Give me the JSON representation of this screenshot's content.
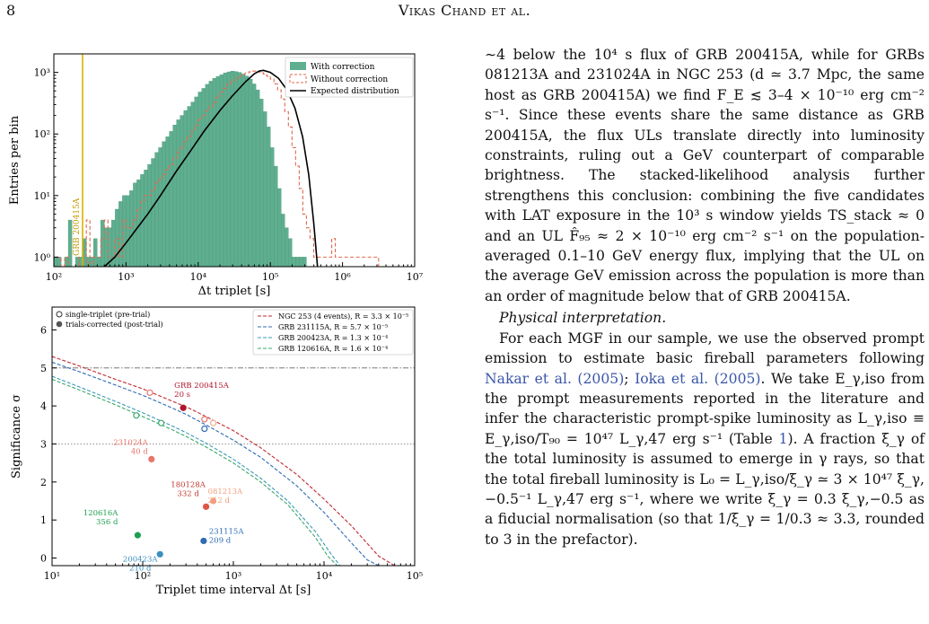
{
  "header": {
    "page_number": "8",
    "authors": "Vikas Chand et al."
  },
  "figure_top": {
    "chart_data": {
      "type": "bar",
      "xlabel": "Δt triplet [s]",
      "ylabel": "Entries per bin",
      "x_scale": "log",
      "y_scale": "log",
      "xlim": [
        100,
        10000000
      ],
      "ylim": [
        0.7,
        2000
      ],
      "x_ticks": [
        "10²",
        "10³",
        "10⁴",
        "10⁵",
        "10⁶",
        "10⁷"
      ],
      "y_ticks": [
        "10⁰",
        "10¹",
        "10²",
        "10³"
      ],
      "legend": [
        "With correction",
        "Without correction",
        "Expected distribution"
      ],
      "legend_position": "top-right",
      "annotation": {
        "label": "GRB 200415A",
        "x": 250
      },
      "log_bin_edges": [
        2.0,
        2.05,
        2.1,
        2.15,
        2.2,
        2.25,
        2.3,
        2.35,
        2.4,
        2.45,
        2.5,
        2.55,
        2.6,
        2.65,
        2.7,
        2.75,
        2.8,
        2.85,
        2.9,
        2.95,
        3.0,
        3.05,
        3.1,
        3.15,
        3.2,
        3.25,
        3.3,
        3.35,
        3.4,
        3.45,
        3.5,
        3.55,
        3.6,
        3.65,
        3.7,
        3.75,
        3.8,
        3.85,
        3.9,
        3.95,
        4.0,
        4.05,
        4.1,
        4.15,
        4.2,
        4.25,
        4.3,
        4.35,
        4.4,
        4.45,
        4.5,
        4.55,
        4.6,
        4.65,
        4.7,
        4.75,
        4.8,
        4.85,
        4.9,
        4.95,
        5.0,
        5.05,
        5.1,
        5.15,
        5.2,
        5.25,
        5.3,
        5.35,
        5.4,
        5.45,
        5.5,
        5.55,
        5.6,
        5.65,
        5.7,
        5.75,
        5.8,
        5.85,
        5.9,
        5.95,
        6.0,
        6.05,
        6.1,
        6.15,
        6.2,
        6.25,
        6.3,
        6.35,
        6.4,
        6.45,
        6.5
      ],
      "series": [
        {
          "name": "With correction",
          "values": [
            1,
            1,
            0,
            1,
            4,
            0,
            1,
            1,
            2,
            1,
            1,
            2,
            1,
            4,
            3,
            3,
            4,
            6,
            8,
            10,
            10,
            12,
            16,
            18,
            22,
            26,
            32,
            40,
            50,
            60,
            75,
            90,
            110,
            140,
            170,
            200,
            240,
            280,
            330,
            400,
            480,
            550,
            640,
            720,
            800,
            860,
            920,
            980,
            1020,
            1050,
            1030,
            1000,
            940,
            870,
            780,
            650,
            520,
            370,
            230,
            130,
            60,
            30,
            13,
            5,
            3,
            2,
            1,
            1,
            1,
            1,
            0,
            0,
            0,
            0,
            0,
            0,
            0,
            0,
            0,
            0,
            0,
            0,
            0,
            0,
            0,
            0,
            0,
            0,
            0,
            0
          ]
        },
        {
          "name": "Without correction",
          "values": [
            1,
            1,
            0,
            1,
            0,
            0,
            0,
            1,
            0,
            4,
            0,
            1,
            1,
            2,
            4,
            1,
            1,
            2,
            1,
            4,
            3,
            3,
            4,
            6,
            8,
            10,
            10,
            12,
            16,
            18,
            22,
            26,
            32,
            40,
            50,
            60,
            75,
            90,
            110,
            140,
            170,
            200,
            240,
            280,
            330,
            400,
            480,
            550,
            640,
            720,
            800,
            860,
            920,
            980,
            1020,
            1050,
            1030,
            1000,
            940,
            870,
            780,
            650,
            520,
            370,
            230,
            130,
            60,
            30,
            13,
            5,
            3,
            2,
            1,
            1,
            1,
            1,
            1,
            2,
            1,
            1,
            1,
            1,
            1,
            1,
            1,
            1,
            1,
            1,
            1,
            1
          ]
        }
      ],
      "expected_curve": {
        "name": "Expected distribution",
        "x": [
          500,
          700,
          1000,
          1500,
          2000,
          3000,
          5000,
          8000,
          12000,
          20000,
          30000,
          45000,
          60000,
          70000,
          80000,
          100000,
          130000,
          170000,
          220000,
          280000,
          340000,
          400000,
          450000
        ],
        "y": [
          0.7,
          1.0,
          1.7,
          3.2,
          5.0,
          10,
          25,
          55,
          110,
          240,
          420,
          700,
          950,
          1050,
          1080,
          1000,
          800,
          520,
          260,
          90,
          22,
          3.5,
          0.7
        ]
      }
    }
  },
  "figure_bottom": {
    "chart_data": {
      "type": "scatter",
      "xlabel": "Triplet time interval Δt [s]",
      "ylabel": "Significance σ",
      "x_scale": "log",
      "xlim": [
        10,
        100000
      ],
      "ylim": [
        -0.2,
        6.6
      ],
      "x_ticks": [
        "10¹",
        "10²",
        "10³",
        "10⁴",
        "10⁵"
      ],
      "y_ticks": [
        "0",
        "1",
        "2",
        "3",
        "4",
        "5",
        "6"
      ],
      "hlines": [
        5,
        3
      ],
      "marker_legend": [
        "single-triplet (pre-trial)",
        "trials-corrected (post-trial)"
      ],
      "curve_legend": [
        "NGC 253 (4 events), R = 3.3 × 10⁻⁵",
        "GRB 231115A, R = 5.7 × 10⁻⁵",
        "GRB 200423A, R = 1.3 × 10⁻⁴",
        "GRB 120616A, R = 1.6 × 10⁻⁴"
      ],
      "curves": [
        {
          "color": "#c0282f",
          "x": [
            10,
            20,
            50,
            100,
            200,
            300,
            500,
            1000,
            2000,
            5000,
            10000,
            20000,
            40000,
            60000
          ],
          "y": [
            5.3,
            5.05,
            4.7,
            4.45,
            4.15,
            3.98,
            3.72,
            3.35,
            2.9,
            2.2,
            1.55,
            0.85,
            0.05,
            -0.2
          ]
        },
        {
          "color": "#2f6cb3",
          "x": [
            10,
            20,
            50,
            100,
            200,
            300,
            500,
            1000,
            2000,
            5000,
            10000,
            20000,
            30000,
            40000
          ],
          "y": [
            5.15,
            4.9,
            4.55,
            4.28,
            3.97,
            3.78,
            3.5,
            3.1,
            2.65,
            1.9,
            1.2,
            0.4,
            -0.05,
            -0.2
          ]
        },
        {
          "color": "#3a9ab8",
          "x": [
            10,
            20,
            50,
            100,
            200,
            300,
            500,
            1000,
            2000,
            4000,
            8000,
            12000,
            15000
          ],
          "y": [
            4.78,
            4.5,
            4.12,
            3.82,
            3.5,
            3.3,
            3.02,
            2.6,
            2.1,
            1.5,
            0.7,
            0.1,
            -0.2
          ]
        },
        {
          "color": "#3aa86a",
          "x": [
            10,
            20,
            50,
            100,
            200,
            300,
            500,
            1000,
            2000,
            4000,
            8000,
            11000,
            14000
          ],
          "y": [
            4.7,
            4.42,
            4.03,
            3.72,
            3.4,
            3.2,
            2.92,
            2.5,
            2.0,
            1.4,
            0.55,
            0.05,
            -0.2
          ]
        }
      ],
      "open_markers": [
        {
          "x": 120,
          "y": 4.35,
          "color": "#e8756a"
        },
        {
          "x": 480,
          "y": 3.65,
          "color": "#e8756a"
        },
        {
          "x": 600,
          "y": 3.55,
          "color": "#f0b090"
        },
        {
          "x": 480,
          "y": 3.4,
          "color": "#2f6cb3"
        },
        {
          "x": 160,
          "y": 3.55,
          "color": "#3aa86a"
        },
        {
          "x": 85,
          "y": 3.75,
          "color": "#3aa86a"
        }
      ],
      "filled_markers": [
        {
          "x": 280,
          "y": 3.95,
          "color": "#b0152a",
          "label": [
            "GRB 200415A",
            "20 s"
          ],
          "label_color": "#b0152a"
        },
        {
          "x": 125,
          "y": 2.6,
          "color": "#e8756a",
          "label": [
            "231024A",
            "40 d"
          ],
          "label_color": "#e8756a"
        },
        {
          "x": 600,
          "y": 1.5,
          "color": "#f0a080",
          "label": [
            "081213A",
            "212 d"
          ],
          "label_color": "#f0a080"
        },
        {
          "x": 500,
          "y": 1.35,
          "color": "#e05545",
          "label": [
            "180128A",
            "332 d"
          ],
          "label_color": "#c03a30"
        },
        {
          "x": 470,
          "y": 0.45,
          "color": "#2f6cb3",
          "label": [
            "231115A",
            "209 d"
          ],
          "label_color": "#2f6cb3"
        },
        {
          "x": 88,
          "y": 0.6,
          "color": "#1fa050",
          "label": [
            "120616A",
            "356 d"
          ],
          "label_color": "#1fa050"
        },
        {
          "x": 155,
          "y": 0.1,
          "color": "#3a8fc0",
          "label": [
            "200423A",
            "210 d"
          ],
          "label_color": "#3a8fc0"
        }
      ]
    }
  },
  "text": {
    "p1": "∼4 below the 10⁴ s flux of GRB 200415A, while for GRBs 081213A and 231024A in NGC 253 (d ≃ 3.7 Mpc, the same host as GRB 200415A) we find F_E ≲ 3–4 × 10⁻¹⁰ erg cm⁻² s⁻¹. Since these events share the same distance as GRB 200415A, the flux ULs translate directly into luminosity constraints, ruling out a GeV counterpart of comparable brightness. The stacked-likelihood analysis further strengthens this conclusion: combining the five candidates with LAT exposure in the 10³ s window yields TS_stack ≈ 0 and an UL F̂₉₅ ≈ 2 × 10⁻¹⁰ erg cm⁻² s⁻¹ on the population-averaged 0.1–10 GeV energy flux, implying that the UL on the average GeV emission across the population is more than an order of magnitude below that of GRB 200415A.",
    "subhead": "Physical interpretation.",
    "p2_a": "For each MGF in our sample, we use the observed prompt emission to estimate basic fireball parameters following ",
    "cite1": "Nakar et al. (2005)",
    "p2_b": "; ",
    "cite2": "Ioka et al. (2005)",
    "p2_c": ". We take E_γ,iso from the prompt measurements reported in the literature and infer the characteristic prompt-spike luminosity as L_γ,iso ≡ E_γ,iso/T₉₀ = 10⁴⁷ L_γ,47 erg s⁻¹ (Table ",
    "cite3": "1",
    "p2_d": "). A fraction ξ_γ of the total luminosity is assumed to emerge in γ rays, so that the total fireball luminosity is L₀ = L_γ,iso/ξ_γ ≃ 3 × 10⁴⁷ ξ_γ,−0.5⁻¹ L_γ,47 erg s⁻¹, where we write ξ_γ = 0.3 ξ_γ,−0.5 as a fiducial normalisation (so that 1/ξ_γ = 1/0.3 ≈ 3.3, rounded to 3 in the prefactor)."
  }
}
